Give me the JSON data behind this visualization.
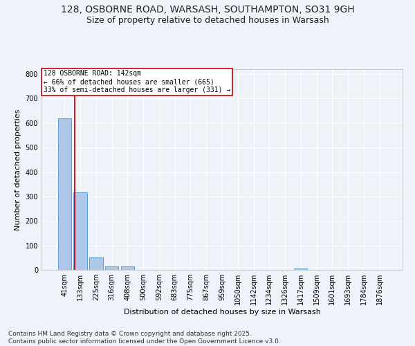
{
  "title1": "128, OSBORNE ROAD, WARSASH, SOUTHAMPTON, SO31 9GH",
  "title2": "Size of property relative to detached houses in Warsash",
  "xlabel": "Distribution of detached houses by size in Warsash",
  "ylabel": "Number of detached properties",
  "footnote1": "Contains HM Land Registry data © Crown copyright and database right 2025.",
  "footnote2": "Contains public sector information licensed under the Open Government Licence v3.0.",
  "bar_labels": [
    "41sqm",
    "133sqm",
    "225sqm",
    "316sqm",
    "408sqm",
    "500sqm",
    "592sqm",
    "683sqm",
    "775sqm",
    "867sqm",
    "959sqm",
    "1050sqm",
    "1142sqm",
    "1234sqm",
    "1326sqm",
    "1417sqm",
    "1509sqm",
    "1601sqm",
    "1693sqm",
    "1784sqm",
    "1876sqm"
  ],
  "bar_values": [
    618,
    316,
    52,
    13,
    13,
    0,
    0,
    0,
    0,
    0,
    0,
    0,
    0,
    0,
    0,
    5,
    0,
    0,
    0,
    0,
    0
  ],
  "bar_color": "#aec6e8",
  "bar_edge_color": "#5a9fd4",
  "annotation_title": "128 OSBORNE ROAD: 142sqm",
  "annotation_line1": "← 66% of detached houses are smaller (665)",
  "annotation_line2": "33% of semi-detached houses are larger (331) →",
  "red_line_color": "#cc0000",
  "ylim": [
    0,
    820
  ],
  "yticks": [
    0,
    100,
    200,
    300,
    400,
    500,
    600,
    700,
    800
  ],
  "background_color": "#eef2f9",
  "grid_color": "#ffffff",
  "title_fontsize": 10,
  "subtitle_fontsize": 9,
  "axis_label_fontsize": 8,
  "tick_fontsize": 7,
  "annotation_fontsize": 7,
  "footnote_fontsize": 6.5
}
